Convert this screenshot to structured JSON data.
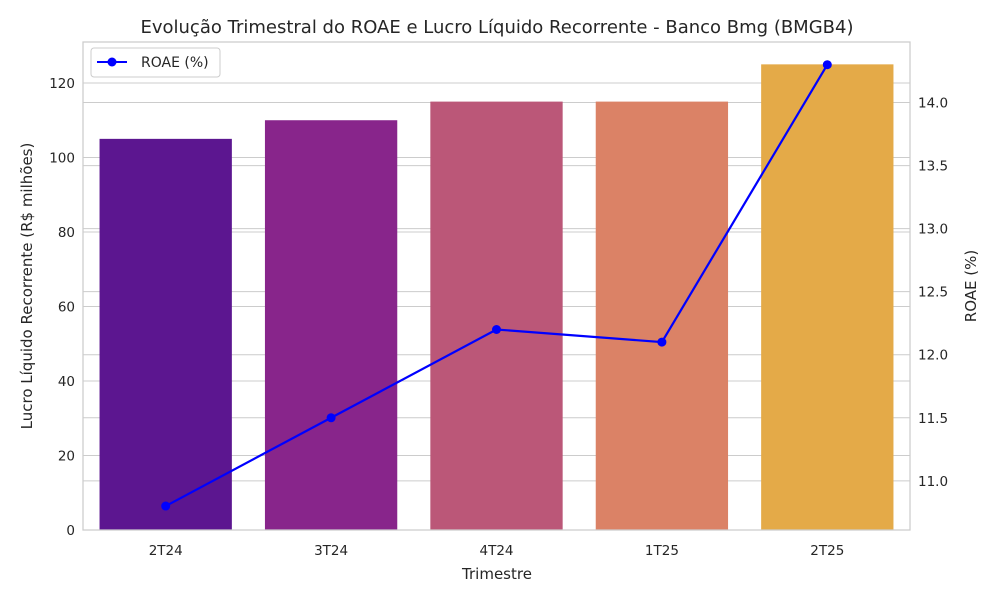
{
  "chart_data": {
    "type": "bar",
    "title": "Evolução Trimestral do ROAE e Lucro Líquido Recorrente - Banco Bmg (BMGB4)",
    "xlabel": "Trimestre",
    "ylabel": "Lucro Líquido Recorrente (R$ milhões)",
    "y2label": "ROAE (%)",
    "categories": [
      "2T24",
      "3T24",
      "4T24",
      "1T25",
      "2T25"
    ],
    "series": [
      {
        "name": "",
        "type": "bar",
        "axis": "left",
        "values": [
          105,
          110,
          115,
          115,
          125
        ],
        "colors": [
          "#5c1690",
          "#88258b",
          "#bb5778",
          "#db8266",
          "#e4aa48"
        ]
      },
      {
        "name": "ROAE (%)",
        "type": "line",
        "axis": "right",
        "values": [
          10.8,
          11.5,
          12.2,
          12.1,
          14.3
        ],
        "color": "#0000ff"
      }
    ],
    "ylim": [
      0,
      131
    ],
    "yticks": [
      0,
      20,
      40,
      60,
      80,
      100,
      120
    ],
    "y2lim": [
      10.61,
      14.48
    ],
    "y2ticks": [
      "11.0",
      "11.5",
      "12.0",
      "12.5",
      "13.0",
      "13.5",
      "14.0"
    ],
    "grid": true,
    "legend_position": "upper-left"
  }
}
